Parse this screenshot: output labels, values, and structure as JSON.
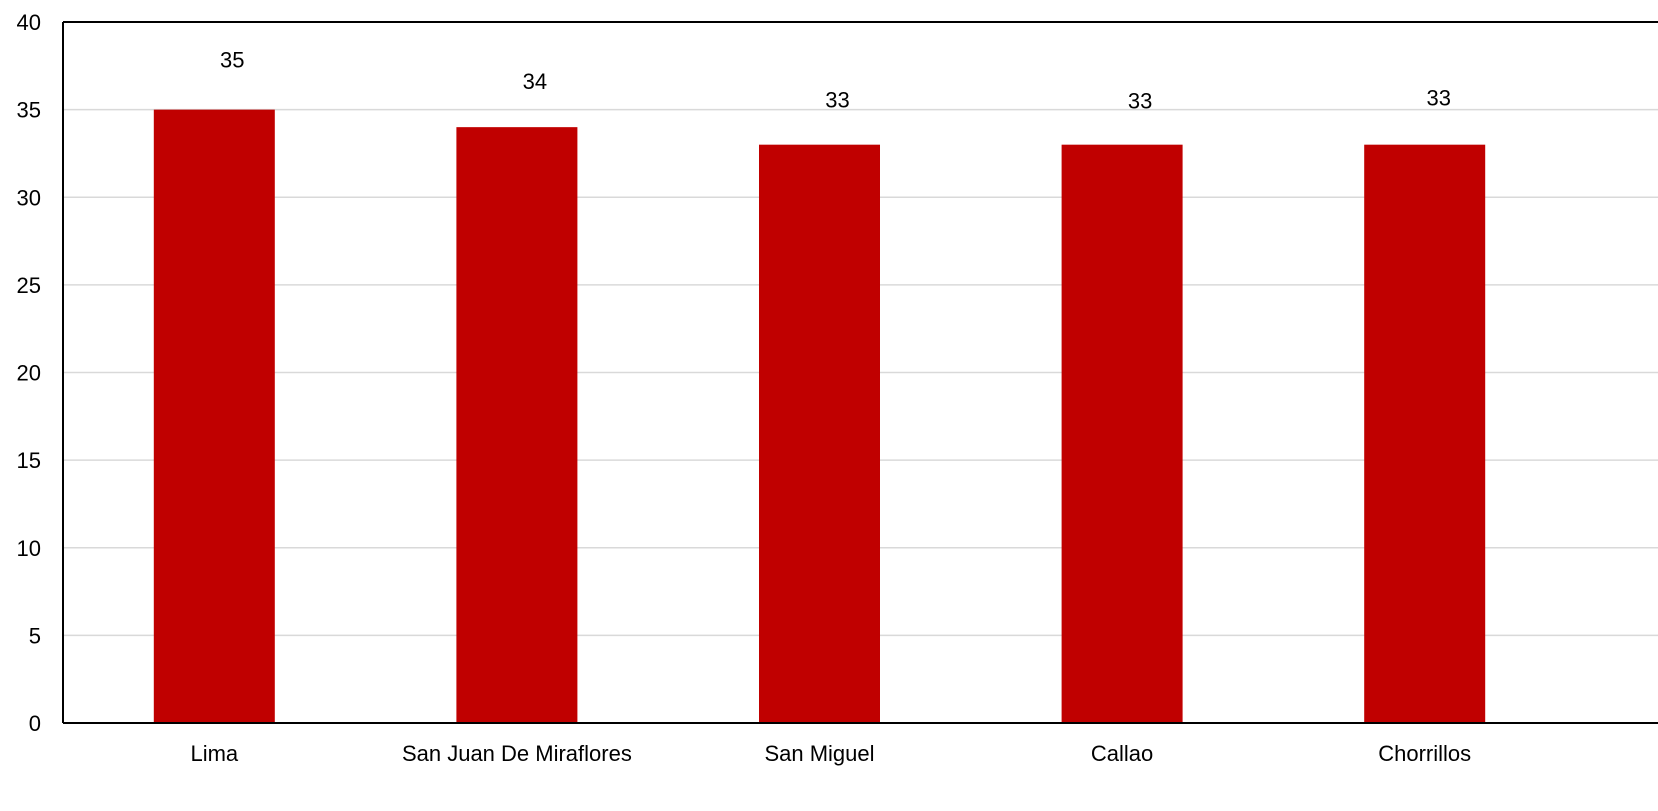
{
  "chart_data": {
    "type": "bar",
    "categories": [
      "Lima",
      "San Juan De Miraflores",
      "San Miguel",
      "Callao",
      "Chorrillos"
    ],
    "values": [
      35,
      34,
      33,
      33,
      33
    ],
    "data_labels": [
      "35",
      "34",
      "33",
      "33",
      "33"
    ],
    "ylim": [
      0,
      40
    ],
    "yticks": [
      0,
      5,
      10,
      15,
      20,
      25,
      30,
      35,
      40
    ],
    "title": "",
    "xlabel": "",
    "ylabel": "",
    "grid": true,
    "legend": "none",
    "colors": {
      "bar": "#c00000",
      "grid": "#d9d9d9",
      "axis": "#000000"
    }
  }
}
